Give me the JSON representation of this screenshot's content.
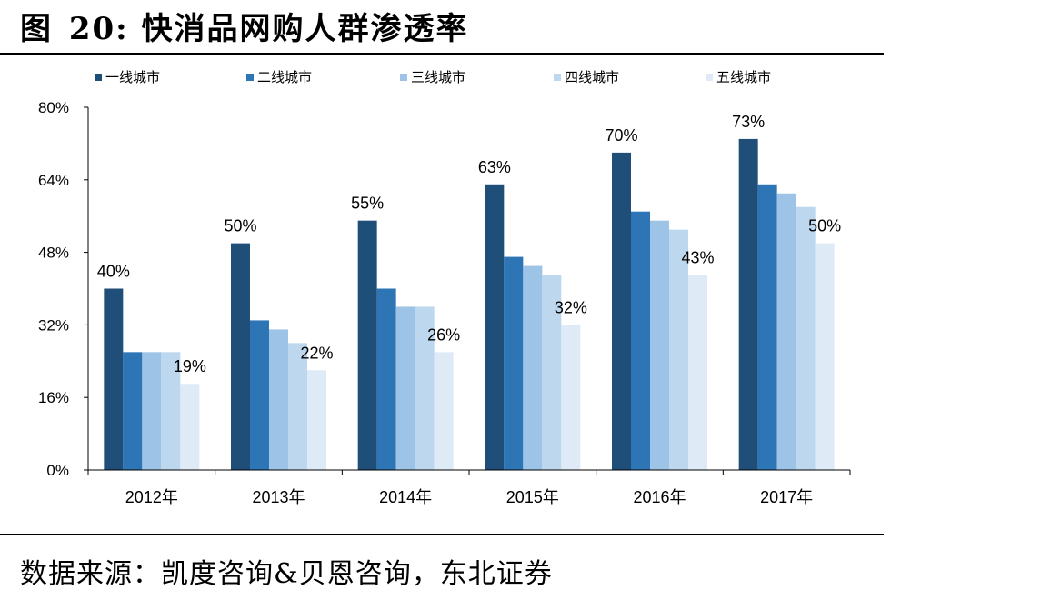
{
  "figure": {
    "label": "图",
    "number": "20:",
    "title": "快消品网购人群渗透率"
  },
  "source": "数据来源：凯度咨询&贝恩咨询，东北证券",
  "colors": {
    "series": [
      "#1f4e79",
      "#2e75b6",
      "#9dc3e6",
      "#bdd7ee",
      "#deebf7"
    ],
    "axis": "#000000"
  },
  "chart_data": {
    "type": "bar",
    "title": "快消品网购人群渗透率",
    "categories": [
      "2012年",
      "2013年",
      "2014年",
      "2015年",
      "2016年",
      "2017年"
    ],
    "series": [
      {
        "name": "一线城市",
        "values": [
          40,
          50,
          55,
          63,
          70,
          73
        ]
      },
      {
        "name": "二线城市",
        "values": [
          26,
          33,
          40,
          47,
          57,
          63
        ]
      },
      {
        "name": "三线城市",
        "values": [
          26,
          31,
          36,
          45,
          55,
          61
        ]
      },
      {
        "name": "四线城市",
        "values": [
          26,
          28,
          36,
          43,
          53,
          58
        ]
      },
      {
        "name": "五线城市",
        "values": [
          19,
          22,
          26,
          32,
          43,
          50
        ]
      }
    ],
    "labeled_series": [
      "一线城市",
      "五线城市"
    ],
    "ylim": [
      0,
      80
    ],
    "yticks": [
      0,
      16,
      32,
      48,
      64,
      80
    ],
    "ytick_labels": [
      "0%",
      "16%",
      "32%",
      "48%",
      "64%",
      "80%"
    ],
    "value_suffix": "%",
    "xlabel": "",
    "ylabel": "",
    "grid": false,
    "legend_position": "top"
  }
}
